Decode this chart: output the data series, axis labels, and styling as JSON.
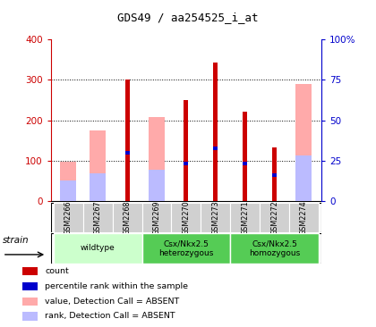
{
  "title": "GDS49 / aa254525_i_at",
  "samples": [
    "GSM2266",
    "GSM2267",
    "GSM2268",
    "GSM2269",
    "GSM2270",
    "GSM2273",
    "GSM2271",
    "GSM2272",
    "GSM2274"
  ],
  "count_values": [
    0,
    0,
    300,
    0,
    250,
    342,
    222,
    133,
    0
  ],
  "percentile_values": [
    0,
    0,
    120,
    0,
    93,
    130,
    93,
    65,
    0
  ],
  "absent_value_values": [
    98,
    175,
    0,
    208,
    0,
    0,
    0,
    0,
    290
  ],
  "absent_rank_values": [
    50,
    68,
    0,
    78,
    0,
    0,
    0,
    0,
    113
  ],
  "count_color": "#cc0000",
  "percentile_color": "#0000cc",
  "absent_value_color": "#ffaaaa",
  "absent_rank_color": "#bbbbff",
  "ylim_left": [
    0,
    400
  ],
  "ylim_right": [
    0,
    100
  ],
  "yticks_left": [
    0,
    100,
    200,
    300,
    400
  ],
  "yticks_right": [
    0,
    25,
    50,
    75,
    100
  ],
  "ytick_labels_right": [
    "0",
    "25",
    "50",
    "75",
    "100%"
  ],
  "group_configs": [
    {
      "start": 0,
      "end": 3,
      "label": "wildtype",
      "color": "#ccffcc"
    },
    {
      "start": 3,
      "end": 6,
      "label": "Csx/Nkx2.5\nheterozygous",
      "color": "#55cc55"
    },
    {
      "start": 6,
      "end": 9,
      "label": "Csx/Nkx2.5\nhomozygous",
      "color": "#55cc55"
    }
  ],
  "legend_items": [
    {
      "label": "count",
      "color": "#cc0000"
    },
    {
      "label": "percentile rank within the sample",
      "color": "#0000cc"
    },
    {
      "label": "value, Detection Call = ABSENT",
      "color": "#ffaaaa"
    },
    {
      "label": "rank, Detection Call = ABSENT",
      "color": "#bbbbff"
    }
  ],
  "strain_label": "strain",
  "left_tick_color": "#cc0000",
  "right_tick_color": "#0000cc",
  "bg_color": "#ffffff",
  "thin_bar_width": 0.15,
  "wide_bar_width": 0.55,
  "tick_box_color": "#d0d0d0"
}
